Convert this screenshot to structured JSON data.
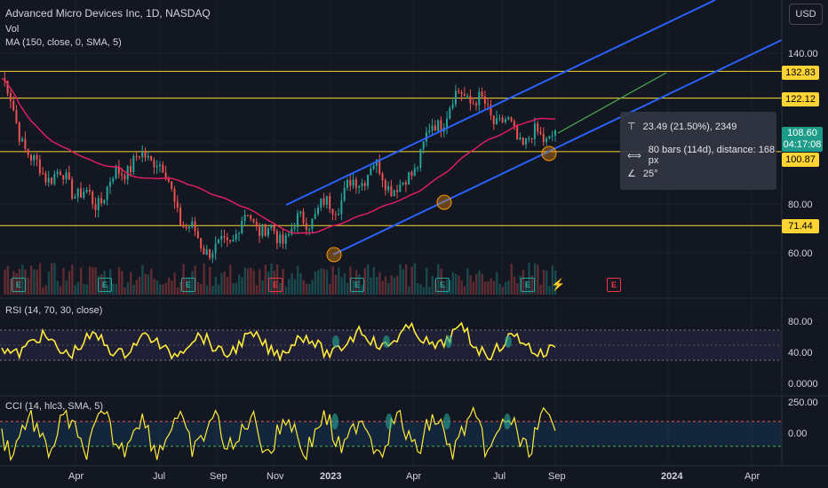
{
  "header": {
    "title": "Advanced Micro Devices Inc, 1D, NASDAQ",
    "vol_label": "Vol",
    "ma_label": "MA (150, close, 0, SMA, 5)",
    "currency_button": "USD"
  },
  "price_axis": {
    "ticks": [
      "140.00",
      "80.00",
      "60.00"
    ]
  },
  "price_tags": [
    "132.83",
    "122.12",
    "100.87",
    "71.44"
  ],
  "last_price": {
    "value": "108.60",
    "countdown": "04:17:08"
  },
  "measure_box": {
    "price_change": "23.49 (21.50%), 2349",
    "bars": "80 bars (114d), distance: 168 px",
    "angle": "25°"
  },
  "rsi": {
    "label": "RSI (14, 70, 30, close)",
    "ticks": [
      "80.00",
      "40.00",
      "0.0000"
    ]
  },
  "cci": {
    "label": "CCI (14, hlc3, SMA, 5)",
    "ticks": [
      "250.00",
      "0.00"
    ]
  },
  "time_axis": [
    "Apr",
    "Jul",
    "Sep",
    "Nov",
    "2023",
    "Apr",
    "Jul",
    "Sep",
    "2024",
    "Apr"
  ],
  "earnings_markers": [
    "E",
    "E",
    "E",
    "E",
    "E",
    "E",
    "E",
    "E"
  ],
  "colors": {
    "background": "#131722",
    "up": "#26a69a",
    "down": "#ef5350",
    "channel": "#2962ff",
    "level": "#fcd535",
    "ma": "#e91e63",
    "rsi": "#ffeb3b",
    "cci": "#ffeb3b"
  },
  "chart_data": {
    "type": "candlestick",
    "instrument": "Advanced Micro Devices Inc",
    "interval": "1D",
    "exchange": "NASDAQ",
    "horizontal_levels": [
      132.83,
      122.12,
      100.87,
      71.44
    ],
    "last_close": 108.6,
    "approx_closes": [
      {
        "x": "2022-03",
        "y": 130
      },
      {
        "x": "2022-04",
        "y": 95
      },
      {
        "x": "2022-05",
        "y": 90
      },
      {
        "x": "2022-06",
        "y": 80
      },
      {
        "x": "2022-07",
        "y": 95
      },
      {
        "x": "2022-08",
        "y": 100
      },
      {
        "x": "2022-09",
        "y": 70
      },
      {
        "x": "2022-10",
        "y": 60
      },
      {
        "x": "2022-11",
        "y": 75
      },
      {
        "x": "2022-12",
        "y": 66
      },
      {
        "x": "2023-01",
        "y": 75
      },
      {
        "x": "2023-02",
        "y": 82
      },
      {
        "x": "2023-03",
        "y": 95
      },
      {
        "x": "2023-04",
        "y": 85
      },
      {
        "x": "2023-05",
        "y": 110
      },
      {
        "x": "2023-06",
        "y": 125
      },
      {
        "x": "2023-07",
        "y": 115
      },
      {
        "x": "2023-08",
        "y": 105
      },
      {
        "x": "2023-09",
        "y": 108.6
      }
    ]
  }
}
